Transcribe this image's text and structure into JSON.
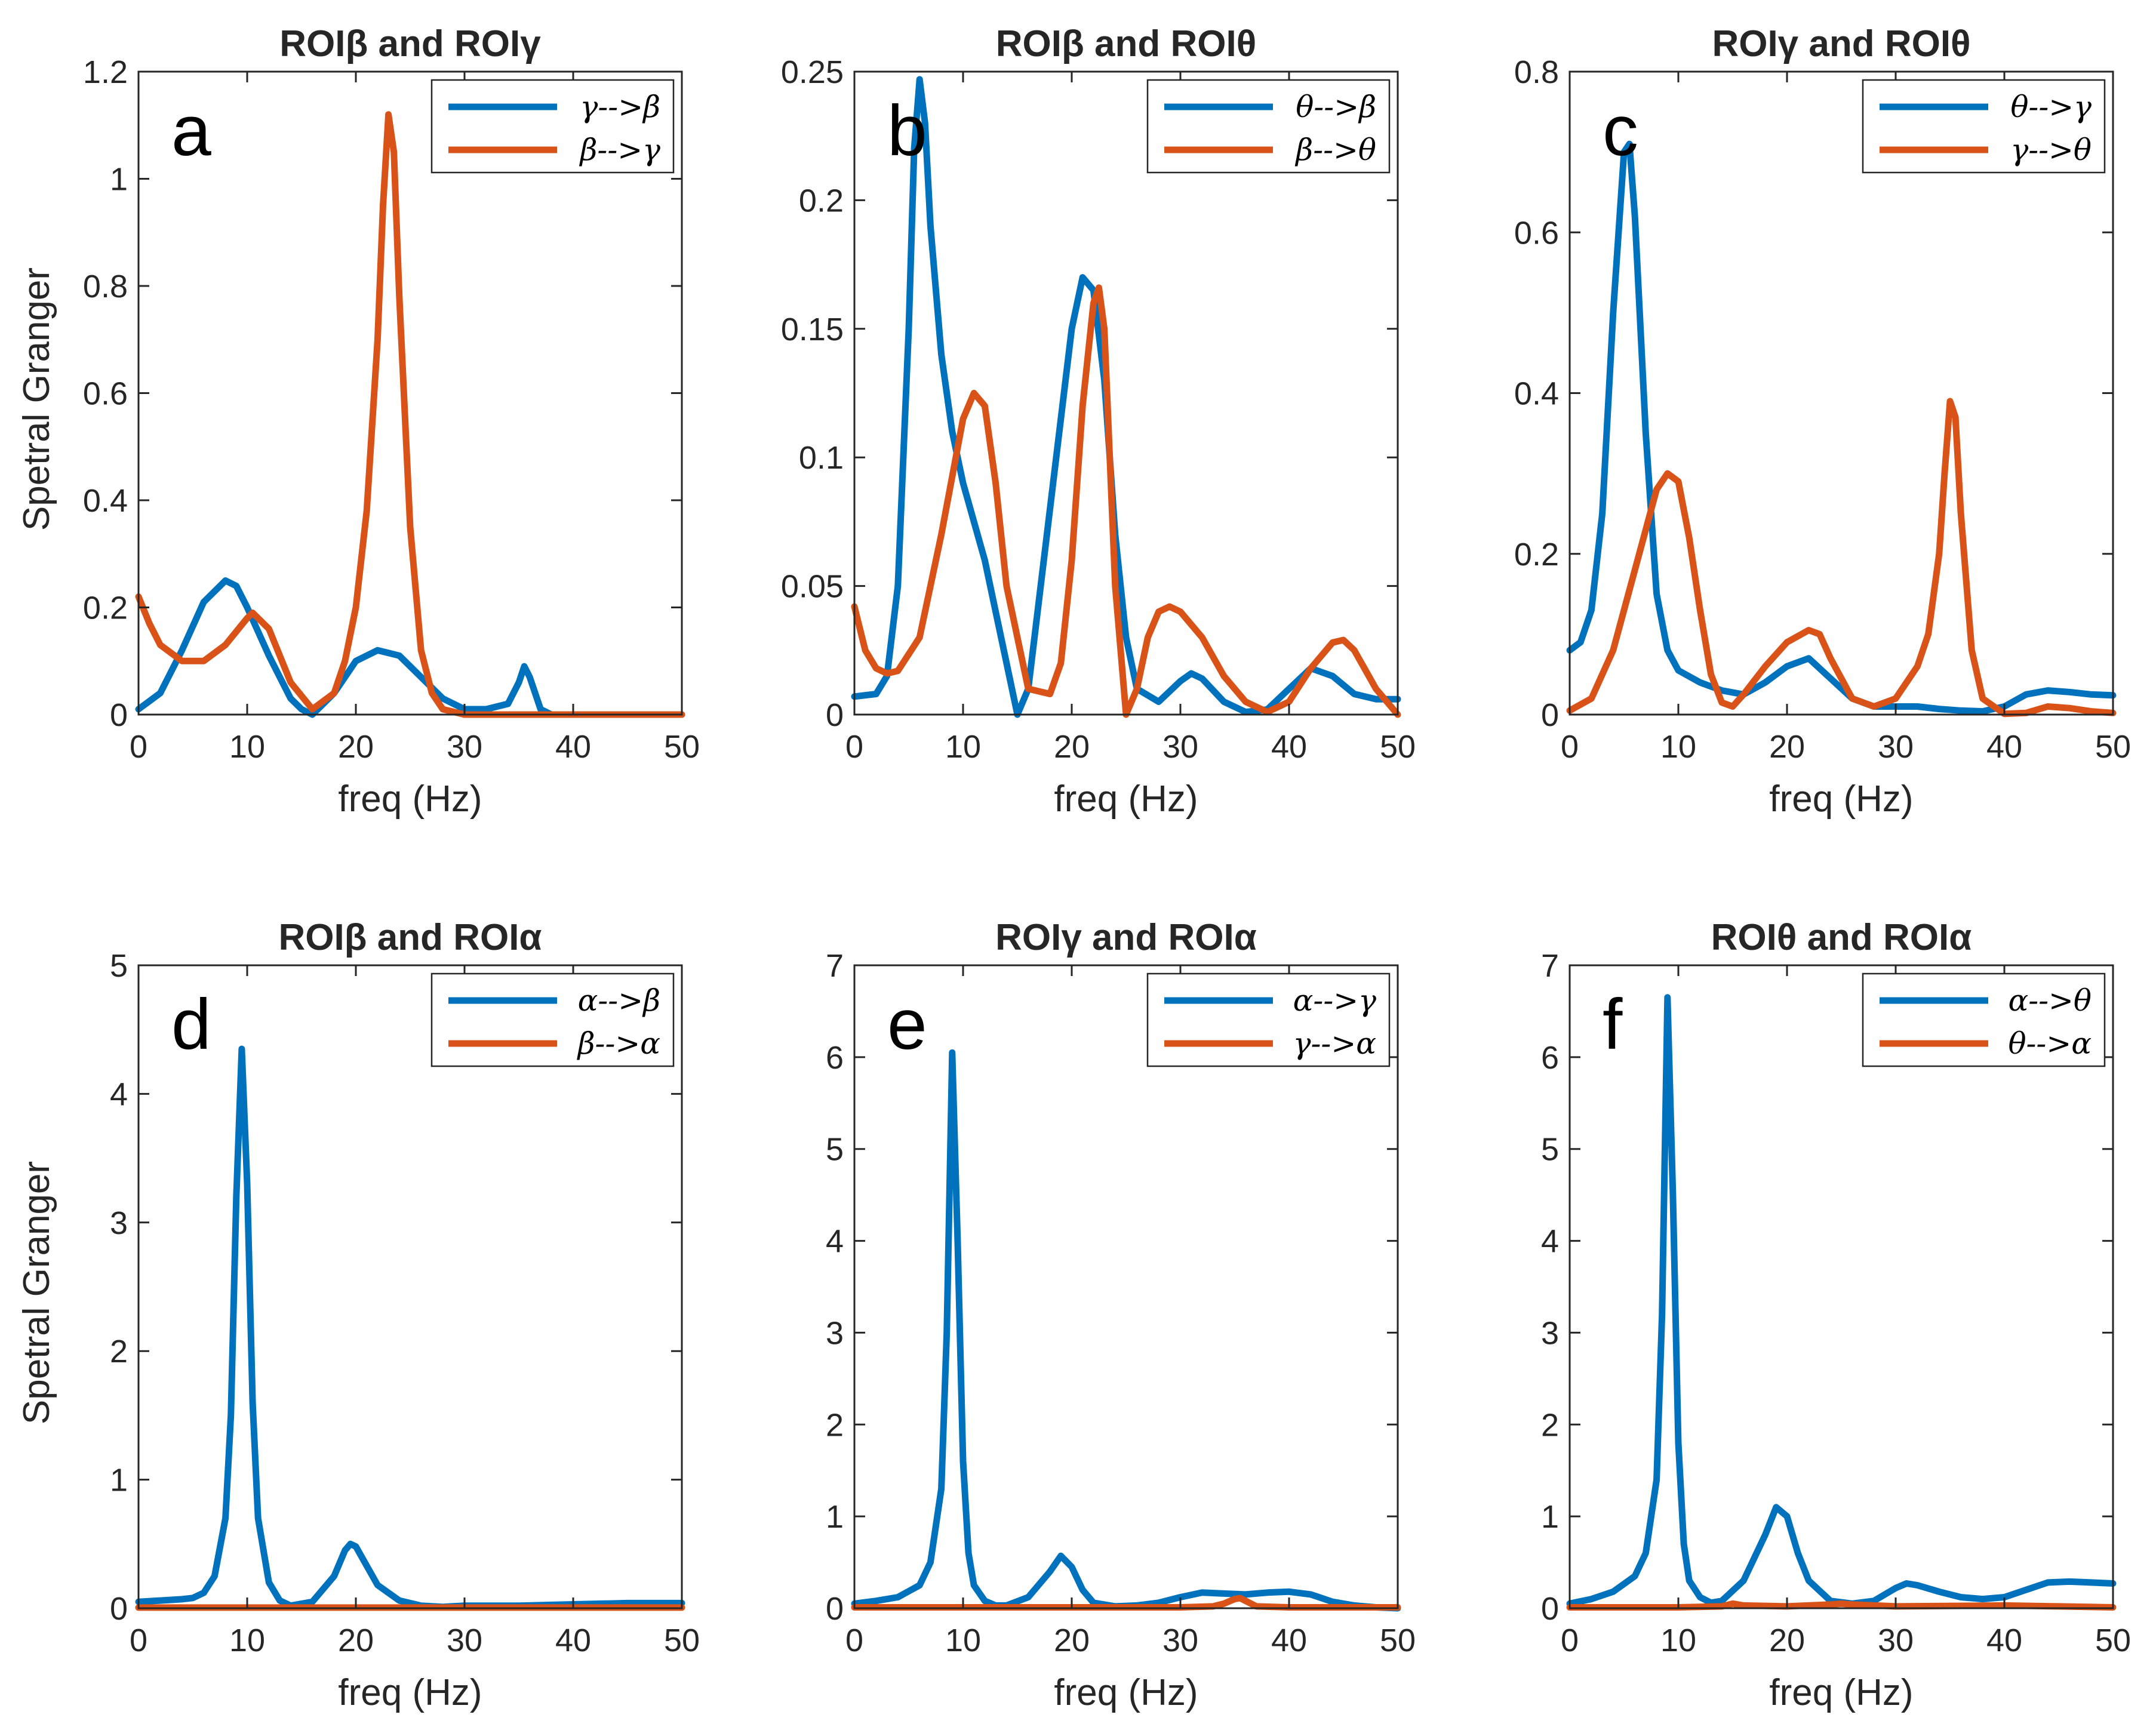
{
  "figure": {
    "y_label": "Spetral Granger",
    "x_label": "freq (Hz)"
  },
  "colors": {
    "series1": "#0072BD",
    "series2": "#D95319",
    "axis": "#262626"
  },
  "chart_data": [
    {
      "type": "line",
      "panel": "a",
      "title": "ROIβ and ROIγ",
      "xlabel": "freq (Hz)",
      "ylabel": "Spetral Granger",
      "xlim": [
        0,
        50
      ],
      "ylim": [
        0,
        1.2
      ],
      "xticks": [
        "0",
        "10",
        "20",
        "30",
        "40",
        "50"
      ],
      "yticks": [
        "0",
        "0.2",
        "0.4",
        "0.6",
        "0.8",
        "1",
        "1.2"
      ],
      "legend_position": "top-right",
      "series": [
        {
          "name": "γ-->β",
          "x": [
            0,
            2,
            4,
            6,
            8,
            9,
            10,
            12,
            14,
            15,
            16,
            18,
            20,
            22,
            24,
            26,
            28,
            30,
            32,
            34,
            35,
            35.5,
            36,
            37,
            38,
            40,
            42,
            45,
            48,
            50
          ],
          "y": [
            0.01,
            0.04,
            0.12,
            0.21,
            0.25,
            0.24,
            0.2,
            0.11,
            0.03,
            0.01,
            0.0,
            0.04,
            0.1,
            0.12,
            0.11,
            0.07,
            0.03,
            0.01,
            0.01,
            0.02,
            0.06,
            0.09,
            0.07,
            0.01,
            0.0,
            0.0,
            0.0,
            0.0,
            0.0,
            0.0
          ]
        },
        {
          "name": "β-->γ",
          "x": [
            0,
            1,
            2,
            4,
            6,
            8,
            10,
            10.5,
            12,
            14,
            16,
            18,
            19,
            20,
            21,
            22,
            22.5,
            23,
            23.5,
            24,
            25,
            26,
            27,
            28,
            30,
            34,
            40,
            45,
            50
          ],
          "y": [
            0.22,
            0.17,
            0.13,
            0.1,
            0.1,
            0.13,
            0.18,
            0.19,
            0.16,
            0.06,
            0.01,
            0.04,
            0.1,
            0.2,
            0.38,
            0.7,
            0.95,
            1.12,
            1.05,
            0.78,
            0.35,
            0.12,
            0.04,
            0.01,
            0.0,
            0.0,
            0.0,
            0.0,
            0.0
          ]
        }
      ]
    },
    {
      "type": "line",
      "panel": "b",
      "title": "ROIβ and ROIθ",
      "xlabel": "freq (Hz)",
      "ylabel": "",
      "xlim": [
        0,
        50
      ],
      "ylim": [
        0,
        0.25
      ],
      "xticks": [
        "0",
        "10",
        "20",
        "30",
        "40",
        "50"
      ],
      "yticks": [
        "0",
        "0.05",
        "0.1",
        "0.15",
        "0.2",
        "0.25"
      ],
      "legend_position": "top-right",
      "series": [
        {
          "name": "θ-->β",
          "x": [
            0,
            2,
            3,
            4,
            5,
            5.5,
            6,
            6.5,
            7,
            8,
            9,
            10,
            12,
            14,
            15,
            16,
            18,
            20,
            21,
            22,
            23,
            24,
            25,
            26,
            28,
            30,
            31,
            32,
            34,
            36,
            38,
            40,
            42,
            44,
            46,
            48,
            50
          ],
          "y": [
            0.007,
            0.008,
            0.015,
            0.05,
            0.15,
            0.22,
            0.247,
            0.23,
            0.19,
            0.14,
            0.11,
            0.09,
            0.06,
            0.02,
            0.0,
            0.01,
            0.08,
            0.15,
            0.17,
            0.165,
            0.13,
            0.07,
            0.03,
            0.01,
            0.005,
            0.013,
            0.016,
            0.014,
            0.005,
            0.001,
            0.002,
            0.01,
            0.018,
            0.015,
            0.008,
            0.006,
            0.006
          ]
        },
        {
          "name": "β-->θ",
          "x": [
            0,
            1,
            2,
            3,
            4,
            6,
            8,
            10,
            11,
            12,
            13,
            14,
            16,
            18,
            19,
            20,
            21,
            22,
            22.5,
            23,
            24,
            25,
            26,
            27,
            28,
            29,
            30,
            32,
            34,
            36,
            38,
            40,
            42,
            44,
            45,
            46,
            48,
            50
          ],
          "y": [
            0.042,
            0.025,
            0.018,
            0.016,
            0.017,
            0.03,
            0.07,
            0.115,
            0.125,
            0.12,
            0.09,
            0.05,
            0.01,
            0.008,
            0.02,
            0.06,
            0.12,
            0.16,
            0.166,
            0.15,
            0.05,
            0.0,
            0.01,
            0.03,
            0.04,
            0.042,
            0.04,
            0.03,
            0.015,
            0.005,
            0.001,
            0.005,
            0.018,
            0.028,
            0.029,
            0.025,
            0.01,
            0.0
          ]
        }
      ]
    },
    {
      "type": "line",
      "panel": "c",
      "title": "ROIγ and ROIθ",
      "xlabel": "freq (Hz)",
      "ylabel": "",
      "xlim": [
        0,
        50
      ],
      "ylim": [
        0,
        0.8
      ],
      "xticks": [
        "0",
        "10",
        "20",
        "30",
        "40",
        "50"
      ],
      "yticks": [
        "0",
        "0.2",
        "0.4",
        "0.6",
        "0.8"
      ],
      "legend_position": "top-right",
      "series": [
        {
          "name": "θ-->γ",
          "x": [
            0,
            1,
            2,
            3,
            4,
            5,
            5.5,
            6,
            7,
            8,
            9,
            10,
            12,
            14,
            16,
            18,
            20,
            22,
            24,
            26,
            28,
            30,
            32,
            34,
            36,
            38,
            40,
            42,
            44,
            46,
            48,
            50
          ],
          "y": [
            0.08,
            0.09,
            0.13,
            0.25,
            0.5,
            0.7,
            0.71,
            0.62,
            0.35,
            0.15,
            0.08,
            0.055,
            0.04,
            0.03,
            0.025,
            0.04,
            0.06,
            0.07,
            0.045,
            0.02,
            0.01,
            0.01,
            0.01,
            0.007,
            0.005,
            0.004,
            0.01,
            0.025,
            0.03,
            0.028,
            0.025,
            0.024
          ]
        },
        {
          "name": "γ-->θ",
          "x": [
            0,
            2,
            4,
            6,
            8,
            9,
            10,
            11,
            12,
            13,
            14,
            15,
            16,
            18,
            20,
            22,
            23,
            24,
            26,
            28,
            30,
            32,
            33,
            34,
            34.5,
            35,
            35.5,
            36,
            37,
            38,
            40,
            42,
            44,
            46,
            48,
            50
          ],
          "y": [
            0.005,
            0.02,
            0.08,
            0.18,
            0.28,
            0.3,
            0.29,
            0.22,
            0.13,
            0.05,
            0.015,
            0.01,
            0.025,
            0.06,
            0.09,
            0.105,
            0.1,
            0.07,
            0.02,
            0.01,
            0.02,
            0.06,
            0.1,
            0.2,
            0.3,
            0.39,
            0.37,
            0.25,
            0.08,
            0.02,
            0.001,
            0.002,
            0.01,
            0.008,
            0.004,
            0.002
          ]
        }
      ]
    },
    {
      "type": "line",
      "panel": "d",
      "title": "ROIβ and ROIα",
      "xlabel": "freq (Hz)",
      "ylabel": "Spetral Granger",
      "xlim": [
        0,
        50
      ],
      "ylim": [
        0,
        5
      ],
      "xticks": [
        "0",
        "10",
        "20",
        "30",
        "40",
        "50"
      ],
      "yticks": [
        "0",
        "1",
        "2",
        "3",
        "4",
        "5"
      ],
      "legend_position": "top-right",
      "series": [
        {
          "name": "α-->β",
          "x": [
            0,
            2,
            4,
            5,
            6,
            7,
            8,
            8.5,
            9,
            9.5,
            10,
            10.5,
            11,
            12,
            13,
            14,
            16,
            18,
            19,
            19.5,
            20,
            21,
            22,
            24,
            26,
            28,
            30,
            35,
            40,
            45,
            50
          ],
          "y": [
            0.05,
            0.06,
            0.07,
            0.08,
            0.12,
            0.25,
            0.7,
            1.5,
            3.2,
            4.35,
            3.3,
            1.6,
            0.7,
            0.2,
            0.06,
            0.02,
            0.05,
            0.25,
            0.45,
            0.5,
            0.48,
            0.33,
            0.18,
            0.06,
            0.02,
            0.01,
            0.02,
            0.02,
            0.03,
            0.04,
            0.04
          ]
        },
        {
          "name": "β-->α",
          "x": [
            0,
            10,
            20,
            30,
            40,
            50
          ],
          "y": [
            0.005,
            0.005,
            0.005,
            0.005,
            0.005,
            0.005
          ]
        }
      ]
    },
    {
      "type": "line",
      "panel": "e",
      "title": "ROIγ and ROIα",
      "xlabel": "freq (Hz)",
      "ylabel": "",
      "xlim": [
        0,
        50
      ],
      "ylim": [
        0,
        7
      ],
      "xticks": [
        "0",
        "10",
        "20",
        "30",
        "40",
        "50"
      ],
      "yticks": [
        "0",
        "1",
        "2",
        "3",
        "4",
        "5",
        "6",
        "7"
      ],
      "legend_position": "top-right",
      "series": [
        {
          "name": "α-->γ",
          "x": [
            0,
            2,
            4,
            6,
            7,
            8,
            8.5,
            9,
            9.5,
            10,
            10.5,
            11,
            12,
            13,
            14,
            16,
            18,
            19,
            20,
            21,
            22,
            24,
            26,
            28,
            30,
            32,
            34,
            36,
            38,
            40,
            42,
            44,
            46,
            48,
            50
          ],
          "y": [
            0.05,
            0.08,
            0.12,
            0.25,
            0.5,
            1.3,
            3.0,
            6.05,
            4.0,
            1.6,
            0.6,
            0.25,
            0.08,
            0.03,
            0.03,
            0.12,
            0.4,
            0.57,
            0.45,
            0.2,
            0.06,
            0.02,
            0.03,
            0.06,
            0.12,
            0.17,
            0.16,
            0.15,
            0.17,
            0.18,
            0.15,
            0.07,
            0.03,
            0.01,
            0.0
          ]
        },
        {
          "name": "γ-->α",
          "x": [
            0,
            10,
            20,
            30,
            33,
            34,
            35,
            35.5,
            36,
            37,
            40,
            50
          ],
          "y": [
            0.01,
            0.01,
            0.01,
            0.01,
            0.02,
            0.05,
            0.1,
            0.11,
            0.08,
            0.02,
            0.01,
            0.01
          ]
        }
      ]
    },
    {
      "type": "line",
      "panel": "f",
      "title": "ROIθ and ROIα",
      "xlabel": "freq (Hz)",
      "ylabel": "",
      "xlim": [
        0,
        50
      ],
      "ylim": [
        0,
        7
      ],
      "xticks": [
        "0",
        "10",
        "20",
        "30",
        "40",
        "50"
      ],
      "yticks": [
        "0",
        "1",
        "2",
        "3",
        "4",
        "5",
        "6",
        "7"
      ],
      "legend_position": "top-right",
      "series": [
        {
          "name": "α-->θ",
          "x": [
            0,
            2,
            4,
            6,
            7,
            8,
            8.5,
            9,
            9.5,
            10,
            10.5,
            11,
            12,
            13,
            14,
            16,
            18,
            19,
            20,
            21,
            22,
            24,
            26,
            28,
            30,
            31,
            32,
            34,
            36,
            38,
            40,
            42,
            44,
            46,
            48,
            50
          ],
          "y": [
            0.05,
            0.1,
            0.18,
            0.35,
            0.6,
            1.4,
            3.2,
            6.65,
            4.5,
            1.8,
            0.7,
            0.3,
            0.12,
            0.06,
            0.08,
            0.3,
            0.8,
            1.1,
            1.0,
            0.6,
            0.3,
            0.08,
            0.05,
            0.08,
            0.22,
            0.27,
            0.25,
            0.18,
            0.12,
            0.1,
            0.12,
            0.2,
            0.28,
            0.29,
            0.28,
            0.27
          ]
        },
        {
          "name": "θ-->α",
          "x": [
            0,
            10,
            14,
            15,
            16,
            20,
            24,
            25,
            26,
            30,
            40,
            45,
            50
          ],
          "y": [
            0.01,
            0.01,
            0.02,
            0.05,
            0.03,
            0.02,
            0.04,
            0.05,
            0.04,
            0.02,
            0.03,
            0.02,
            0.01
          ]
        }
      ]
    }
  ]
}
